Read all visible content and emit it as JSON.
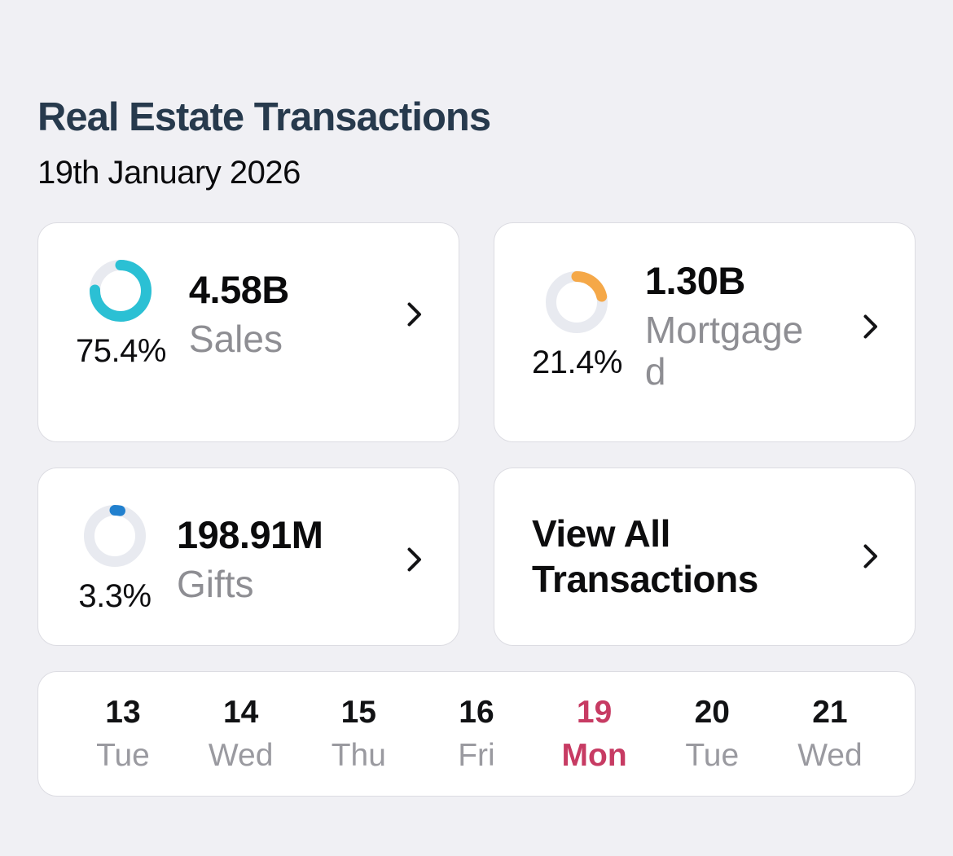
{
  "page": {
    "title": "Real Estate Transactions",
    "date": "19th January 2026"
  },
  "colors": {
    "background": "#f0f0f4",
    "card_background": "#ffffff",
    "title_text": "#273a4d",
    "muted_label": "#8e8e93",
    "donut_track": "#e8eaf0",
    "sales_accent": "#2bc0d4",
    "mortgaged_accent": "#f5a848",
    "gifts_accent": "#2180ce",
    "selected_day": "#c73b63"
  },
  "icons": {
    "chevron_right": "chevron-right"
  },
  "cards": [
    {
      "id": "sales",
      "value": "4.58B",
      "label": "Sales",
      "percent": "75.4%",
      "percent_value": 75.4,
      "color": "#2bc0d4"
    },
    {
      "id": "mortgaged",
      "value": "1.30B",
      "label": "Mortgaged",
      "percent": "21.4%",
      "percent_value": 21.4,
      "color": "#f5a848"
    },
    {
      "id": "gifts",
      "value": "198.91M",
      "label": "Gifts",
      "percent": "3.3%",
      "percent_value": 3.3,
      "color": "#2180ce"
    }
  ],
  "view_all": {
    "label": "View All Transactions"
  },
  "date_strip": {
    "days": [
      {
        "day": "13",
        "weekday": "Tue",
        "selected": false
      },
      {
        "day": "14",
        "weekday": "Wed",
        "selected": false
      },
      {
        "day": "15",
        "weekday": "Thu",
        "selected": false
      },
      {
        "day": "16",
        "weekday": "Fri",
        "selected": false
      },
      {
        "day": "19",
        "weekday": "Mon",
        "selected": true
      },
      {
        "day": "20",
        "weekday": "Tue",
        "selected": false
      },
      {
        "day": "21",
        "weekday": "Wed",
        "selected": false
      }
    ]
  }
}
